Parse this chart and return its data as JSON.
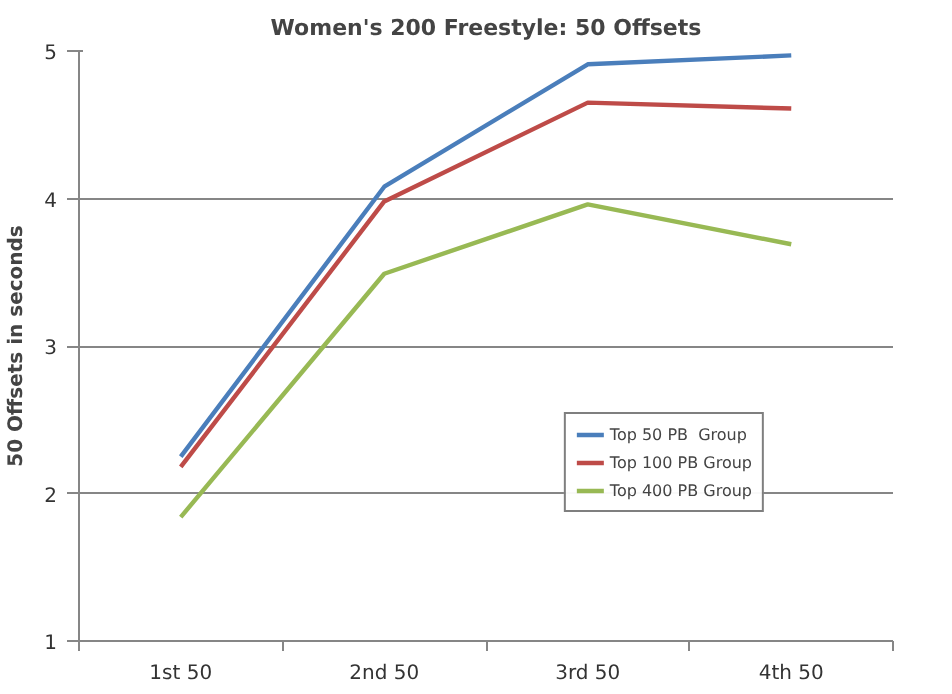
{
  "chart_data": {
    "type": "line",
    "title": "Women's 200 Freestyle: 50 Offsets",
    "ylabel": "50 Offsets in seconds",
    "categories": [
      "1st 50",
      "2nd 50",
      "3rd 50",
      "4th 50"
    ],
    "series": [
      {
        "name": "Top 50 PB  Group",
        "color": "#4a7ebb",
        "values": [
          2.25,
          4.08,
          4.91,
          4.97
        ]
      },
      {
        "name": "Top 100 PB Group",
        "color": "#be4b48",
        "values": [
          2.18,
          3.98,
          4.65,
          4.61
        ]
      },
      {
        "name": "Top 400 PB Group",
        "color": "#98b954",
        "values": [
          1.84,
          3.49,
          3.96,
          3.69
        ]
      }
    ],
    "ylim": [
      1,
      5
    ],
    "yticks": [
      1,
      2,
      3,
      4,
      5
    ],
    "grid": "y",
    "legend": "bottom right",
    "marker": "none",
    "line_style": "solid"
  }
}
